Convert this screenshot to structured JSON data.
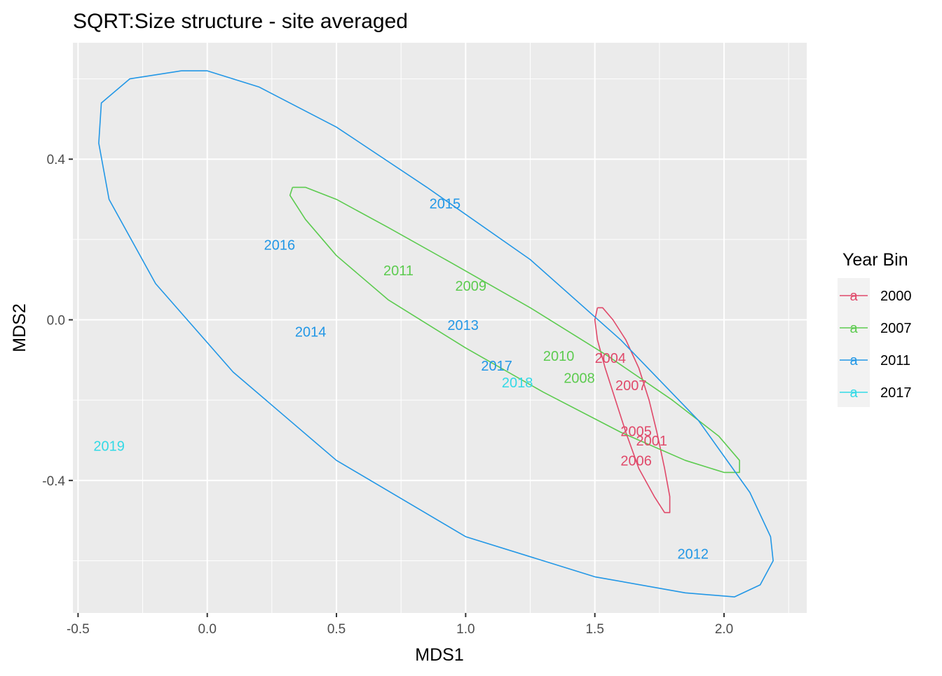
{
  "chart_data": {
    "type": "scatter",
    "title": "SQRT:Size structure - site averaged",
    "xlabel": "MDS1",
    "ylabel": "MDS2",
    "xlim": [
      -0.52,
      2.32
    ],
    "ylim": [
      -0.73,
      0.69
    ],
    "x_ticks": [
      -0.5,
      0.0,
      0.5,
      1.0,
      1.5,
      2.0
    ],
    "x_tick_labels": [
      "-0.5",
      "0.0",
      "0.5",
      "1.0",
      "1.5",
      "2.0"
    ],
    "y_ticks": [
      -0.4,
      0.0,
      0.4
    ],
    "y_tick_labels": [
      "-0.4",
      "0.0",
      "0.4"
    ],
    "grid": true,
    "legend": {
      "title": "Year Bin",
      "placement": "right",
      "entries": [
        {
          "label": "2000",
          "color": "#E0496A"
        },
        {
          "label": "2007",
          "color": "#5CCB4F"
        },
        {
          "label": "2011",
          "color": "#2297E6"
        },
        {
          "label": "2017",
          "color": "#33D9E6"
        }
      ]
    },
    "series": [
      {
        "name": "2000",
        "color": "#E0496A",
        "points": [
          {
            "label": "2004",
            "x": 1.56,
            "y": -0.095
          },
          {
            "label": "2007",
            "x": 1.64,
            "y": -0.163
          },
          {
            "label": "2005",
            "x": 1.66,
            "y": -0.277
          },
          {
            "label": "2001",
            "x": 1.72,
            "y": -0.301
          },
          {
            "label": "2006",
            "x": 1.66,
            "y": -0.351
          }
        ],
        "ellipse": [
          [
            1.51,
            0.03
          ],
          [
            1.5,
            0.0
          ],
          [
            1.51,
            -0.05
          ],
          [
            1.54,
            -0.12
          ],
          [
            1.58,
            -0.2
          ],
          [
            1.62,
            -0.28
          ],
          [
            1.67,
            -0.37
          ],
          [
            1.73,
            -0.44
          ],
          [
            1.77,
            -0.48
          ],
          [
            1.79,
            -0.48
          ],
          [
            1.79,
            -0.44
          ],
          [
            1.77,
            -0.37
          ],
          [
            1.74,
            -0.28
          ],
          [
            1.71,
            -0.2
          ],
          [
            1.67,
            -0.12
          ],
          [
            1.62,
            -0.05
          ],
          [
            1.57,
            0.0
          ],
          [
            1.53,
            0.03
          ],
          [
            1.51,
            0.03
          ]
        ]
      },
      {
        "name": "2007",
        "color": "#5CCB4F",
        "points": [
          {
            "label": "2011",
            "x": 0.74,
            "y": 0.123
          },
          {
            "label": "2009",
            "x": 1.02,
            "y": 0.085
          },
          {
            "label": "2010",
            "x": 1.36,
            "y": -0.09
          },
          {
            "label": "2008",
            "x": 1.44,
            "y": -0.145
          }
        ],
        "ellipse": [
          [
            0.33,
            0.33
          ],
          [
            0.38,
            0.33
          ],
          [
            0.5,
            0.3
          ],
          [
            0.7,
            0.23
          ],
          [
            0.95,
            0.14
          ],
          [
            1.25,
            0.03
          ],
          [
            1.55,
            -0.09
          ],
          [
            1.8,
            -0.2
          ],
          [
            1.98,
            -0.29
          ],
          [
            2.06,
            -0.35
          ],
          [
            2.06,
            -0.38
          ],
          [
            2.0,
            -0.38
          ],
          [
            1.85,
            -0.35
          ],
          [
            1.6,
            -0.28
          ],
          [
            1.3,
            -0.18
          ],
          [
            1.0,
            -0.07
          ],
          [
            0.7,
            0.05
          ],
          [
            0.5,
            0.16
          ],
          [
            0.38,
            0.25
          ],
          [
            0.32,
            0.31
          ],
          [
            0.33,
            0.33
          ]
        ]
      },
      {
        "name": "2011",
        "color": "#2297E6",
        "points": [
          {
            "label": "2015",
            "x": 0.92,
            "y": 0.29
          },
          {
            "label": "2016",
            "x": 0.28,
            "y": 0.187
          },
          {
            "label": "2013",
            "x": 0.99,
            "y": -0.013
          },
          {
            "label": "2014",
            "x": 0.4,
            "y": -0.03
          },
          {
            "label": "2017",
            "x": 1.12,
            "y": -0.114
          },
          {
            "label": "2012",
            "x": 1.88,
            "y": -0.583
          }
        ],
        "ellipse": [
          [
            -0.1,
            0.62
          ],
          [
            0.0,
            0.62
          ],
          [
            0.2,
            0.58
          ],
          [
            0.5,
            0.48
          ],
          [
            0.85,
            0.33
          ],
          [
            1.25,
            0.15
          ],
          [
            1.6,
            -0.05
          ],
          [
            1.9,
            -0.25
          ],
          [
            2.1,
            -0.43
          ],
          [
            2.18,
            -0.54
          ],
          [
            2.19,
            -0.6
          ],
          [
            2.14,
            -0.66
          ],
          [
            2.04,
            -0.69
          ],
          [
            1.85,
            -0.68
          ],
          [
            1.5,
            -0.64
          ],
          [
            1.0,
            -0.54
          ],
          [
            0.5,
            -0.35
          ],
          [
            0.1,
            -0.13
          ],
          [
            -0.2,
            0.09
          ],
          [
            -0.38,
            0.3
          ],
          [
            -0.42,
            0.44
          ],
          [
            -0.41,
            0.54
          ],
          [
            -0.3,
            0.6
          ],
          [
            -0.1,
            0.62
          ]
        ]
      },
      {
        "name": "2017",
        "color": "#33D9E6",
        "points": [
          {
            "label": "2018",
            "x": 1.2,
            "y": -0.156
          },
          {
            "label": "2019",
            "x": -0.38,
            "y": -0.314
          }
        ]
      }
    ]
  }
}
